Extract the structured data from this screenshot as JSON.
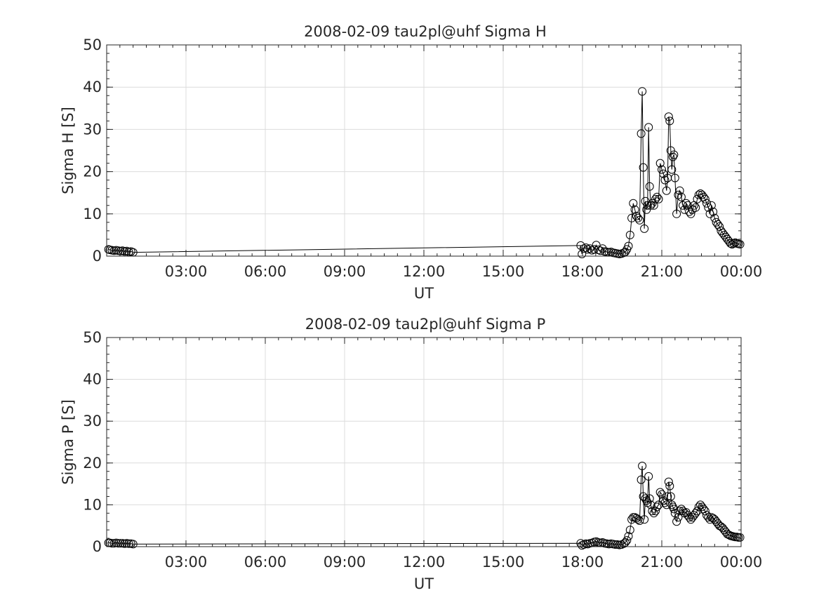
{
  "chart_data": [
    {
      "type": "line",
      "title": "2008-02-09  tau2pl@uhf Sigma H",
      "xlabel": "UT",
      "ylabel": "Sigma H [S]",
      "xlim": [
        0,
        24
      ],
      "ylim": [
        0,
        50
      ],
      "xticks": [
        3,
        6,
        9,
        12,
        15,
        18,
        21,
        24
      ],
      "xtick_labels": [
        "03:00",
        "06:00",
        "09:00",
        "12:00",
        "15:00",
        "18:00",
        "21:00",
        "00:00"
      ],
      "yticks": [
        0,
        10,
        20,
        30,
        40,
        50
      ],
      "ytick_labels": [
        "0",
        "10",
        "20",
        "30",
        "40",
        "50"
      ],
      "grid": true,
      "marker": "open-circle",
      "color": "#000000",
      "series": [
        {
          "x": [
            0.07,
            0.12,
            0.2,
            0.28,
            0.36,
            0.44,
            0.52,
            0.6,
            0.68,
            0.76,
            0.84,
            0.92,
            1.0,
            17.93,
            17.98,
            18.05,
            18.13,
            18.2,
            18.28,
            18.36,
            18.44,
            18.52,
            18.6,
            18.68,
            18.76,
            18.84,
            18.92,
            19.0,
            19.08,
            19.16,
            19.24,
            19.32,
            19.4,
            19.48,
            19.56,
            19.62,
            19.68,
            19.74,
            19.8,
            19.86,
            19.92,
            19.98,
            20.04,
            20.1,
            20.16,
            20.22,
            20.26,
            20.3,
            20.34,
            20.38,
            20.42,
            20.46,
            20.5,
            20.54,
            20.58,
            20.64,
            20.7,
            20.76,
            20.82,
            20.88,
            20.94,
            21.0,
            21.06,
            21.12,
            21.18,
            21.22,
            21.26,
            21.3,
            21.34,
            21.38,
            21.42,
            21.46,
            21.5,
            21.56,
            21.62,
            21.68,
            21.74,
            21.8,
            21.86,
            21.92,
            21.98,
            22.04,
            22.1,
            22.16,
            22.22,
            22.28,
            22.34,
            22.4,
            22.46,
            22.52,
            22.58,
            22.64,
            22.7,
            22.76,
            22.82,
            22.88,
            22.94,
            23.0,
            23.06,
            23.12,
            23.18,
            23.24,
            23.3,
            23.36,
            23.42,
            23.48,
            23.54,
            23.6,
            23.66,
            23.72,
            23.78,
            23.84,
            23.9,
            23.96
          ],
          "y": [
            1.6,
            1.5,
            1.4,
            1.3,
            1.4,
            1.3,
            1.2,
            1.3,
            1.1,
            1.2,
            1.0,
            1.1,
            0.9,
            2.5,
            0.5,
            1.8,
            2.0,
            1.6,
            1.8,
            1.4,
            1.6,
            2.6,
            1.5,
            1.3,
            1.8,
            1.1,
            1.0,
            0.9,
            1.0,
            0.8,
            0.7,
            0.6,
            0.5,
            0.6,
            0.8,
            1.0,
            1.6,
            2.4,
            5.0,
            9.0,
            12.5,
            11.0,
            9.5,
            9.0,
            8.5,
            29.0,
            39.0,
            21.0,
            6.5,
            13.0,
            11.0,
            12.0,
            30.5,
            16.5,
            12.0,
            12.5,
            12.0,
            13.5,
            14.0,
            13.5,
            22.0,
            20.5,
            19.5,
            18.0,
            15.5,
            18.5,
            33.0,
            32.0,
            25.0,
            20.5,
            23.5,
            24.0,
            18.5,
            10.0,
            14.5,
            15.5,
            14.0,
            12.0,
            11.0,
            12.5,
            12.0,
            10.5,
            10.0,
            11.0,
            12.0,
            11.5,
            13.5,
            14.5,
            14.8,
            14.5,
            14.0,
            13.5,
            12.5,
            11.5,
            10.0,
            12.0,
            10.5,
            9.0,
            8.0,
            7.5,
            7.0,
            6.0,
            5.5,
            5.0,
            4.5,
            4.0,
            3.5,
            3.0,
            2.8,
            3.0,
            3.2,
            3.0,
            2.9,
            2.8
          ]
        }
      ]
    },
    {
      "type": "line",
      "title": "2008-02-09  tau2pl@uhf Sigma P",
      "xlabel": "UT",
      "ylabel": "Sigma P [S]",
      "xlim": [
        0,
        24
      ],
      "ylim": [
        0,
        50
      ],
      "xticks": [
        3,
        6,
        9,
        12,
        15,
        18,
        21,
        24
      ],
      "xtick_labels": [
        "03:00",
        "06:00",
        "09:00",
        "12:00",
        "15:00",
        "18:00",
        "21:00",
        "00:00"
      ],
      "yticks": [
        0,
        10,
        20,
        30,
        40,
        50
      ],
      "ytick_labels": [
        "0",
        "10",
        "20",
        "30",
        "40",
        "50"
      ],
      "grid": true,
      "marker": "open-circle",
      "color": "#000000",
      "series": [
        {
          "x": [
            0.07,
            0.12,
            0.2,
            0.28,
            0.36,
            0.44,
            0.52,
            0.6,
            0.68,
            0.76,
            0.84,
            0.92,
            1.0,
            17.93,
            17.98,
            18.05,
            18.13,
            18.2,
            18.28,
            18.36,
            18.44,
            18.52,
            18.6,
            18.68,
            18.76,
            18.84,
            18.92,
            19.0,
            19.08,
            19.16,
            19.24,
            19.32,
            19.4,
            19.48,
            19.56,
            19.62,
            19.68,
            19.74,
            19.8,
            19.86,
            19.92,
            19.98,
            20.04,
            20.1,
            20.16,
            20.22,
            20.26,
            20.3,
            20.34,
            20.38,
            20.42,
            20.46,
            20.5,
            20.54,
            20.58,
            20.64,
            20.7,
            20.76,
            20.82,
            20.88,
            20.94,
            21.0,
            21.06,
            21.12,
            21.18,
            21.22,
            21.26,
            21.3,
            21.34,
            21.38,
            21.42,
            21.46,
            21.5,
            21.56,
            21.62,
            21.68,
            21.74,
            21.8,
            21.86,
            21.92,
            21.98,
            22.04,
            22.1,
            22.16,
            22.22,
            22.28,
            22.34,
            22.4,
            22.46,
            22.52,
            22.58,
            22.64,
            22.7,
            22.76,
            22.82,
            22.88,
            22.94,
            23.0,
            23.06,
            23.12,
            23.18,
            23.24,
            23.3,
            23.36,
            23.42,
            23.48,
            23.54,
            23.6,
            23.66,
            23.72,
            23.78,
            23.84,
            23.9,
            23.96
          ],
          "y": [
            0.9,
            0.9,
            0.8,
            0.8,
            0.9,
            0.8,
            0.8,
            0.8,
            0.7,
            0.8,
            0.7,
            0.7,
            0.6,
            0.8,
            0.3,
            0.5,
            0.7,
            0.6,
            0.8,
            0.9,
            1.1,
            1.2,
            1.0,
            0.9,
            1.0,
            0.8,
            0.7,
            0.6,
            0.7,
            0.6,
            0.5,
            0.5,
            0.4,
            0.5,
            0.7,
            1.0,
            1.5,
            2.5,
            4.0,
            6.5,
            7.0,
            7.0,
            6.8,
            6.5,
            6.2,
            16.0,
            19.3,
            12.0,
            6.5,
            11.5,
            11.0,
            10.5,
            16.8,
            11.5,
            10.0,
            8.5,
            8.0,
            8.5,
            9.5,
            10.0,
            13.0,
            12.5,
            11.0,
            10.5,
            10.0,
            12.0,
            15.5,
            14.5,
            12.0,
            10.0,
            9.5,
            9.0,
            8.0,
            6.0,
            7.0,
            8.5,
            9.0,
            8.5,
            8.0,
            8.2,
            7.5,
            7.0,
            6.5,
            7.0,
            7.5,
            8.0,
            8.5,
            9.5,
            10.0,
            9.5,
            9.0,
            8.5,
            7.5,
            7.0,
            6.5,
            7.0,
            6.8,
            6.5,
            6.0,
            5.5,
            5.0,
            4.8,
            4.5,
            4.0,
            3.5,
            3.0,
            2.8,
            2.6,
            2.5,
            2.4,
            2.3,
            2.3,
            2.2,
            2.2
          ]
        }
      ]
    }
  ]
}
